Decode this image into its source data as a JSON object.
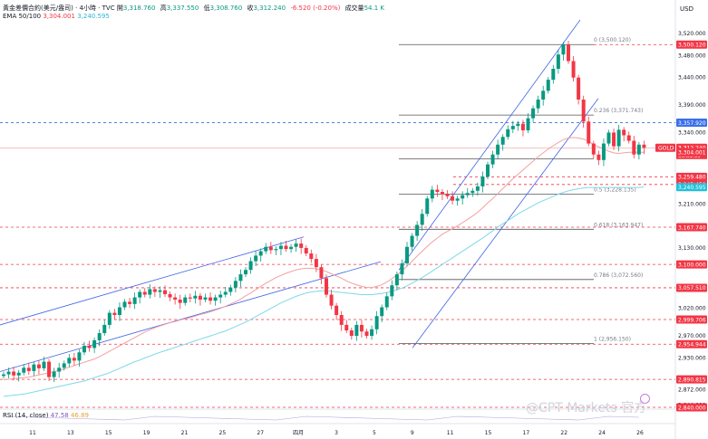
{
  "header": {
    "symbol": "黃金差價合約(美元/盎司) · 4小時 · TVC",
    "open_label": "開",
    "open": "3,318.760",
    "high_label": "高",
    "high": "3,337.550",
    "low_label": "低",
    "low": "3,308.760",
    "close_label": "收",
    "close": "3,312.240",
    "change": "-6.520 (-0.20%)",
    "volume_label": "成交量",
    "volume": "54.1 K",
    "ema_label": "EMA 50/100",
    "ema50": "3,304.001",
    "ema100": "3,240.595",
    "rsi_label": "RSI (14, close)",
    "rsi1": "47.58",
    "rsi2": "46.89"
  },
  "watermark": "@CPT Markets 官方",
  "colors": {
    "up": "#089981",
    "down": "#f23645",
    "ema50": "#f4a0a0",
    "ema100": "#7fd8ea",
    "channel": "#3f63e8",
    "fib": "#555555",
    "level": "#f23645",
    "blue_level": "#3a6fe8"
  },
  "chart_data": {
    "type": "candlestick",
    "currency": "USD",
    "price_axis": {
      "ticks": [
        3520,
        3480,
        3440,
        3390,
        3340,
        3300,
        3210,
        3130,
        3100,
        3060,
        3020,
        2970,
        2930,
        2872,
        2844
      ],
      "tick_labels": [
        "3,520.000",
        "3,480.000",
        "3,440.000",
        "3,390.000",
        "3,340.000",
        "3,300.000",
        "3,210.000",
        "3,130.000",
        "3,100.000",
        "3,060.000",
        "3,020.000",
        "2,970.000",
        "2,930.000",
        "2,872.000",
        "2,844.000"
      ],
      "range": [
        2840,
        3540
      ]
    },
    "x_labels": [
      "11",
      "13",
      "15",
      "19",
      "21",
      "25",
      "27",
      "四月",
      "3",
      "5",
      "9",
      "11",
      "15",
      "17",
      "22",
      "24",
      "26"
    ],
    "levels": [
      {
        "value": 3500.12,
        "label": "3,500.120",
        "kind": "red"
      },
      {
        "value": 3357.92,
        "label": "3,357.920",
        "kind": "blue"
      },
      {
        "value": 3312.24,
        "label": "3,312.240",
        "kind": "current",
        "timer": "03:03:55",
        "ticker": "GOLD"
      },
      {
        "value": 3304.001,
        "label": "3,304.001",
        "kind": "ema50"
      },
      {
        "value": 3259.48,
        "label": "3,259.480",
        "kind": "red"
      },
      {
        "value": 3245.45,
        "label": "3,245.450",
        "kind": "red"
      },
      {
        "value": 3240.595,
        "label": "3,240.595",
        "kind": "ema100"
      },
      {
        "value": 3167.74,
        "label": "3,167.740",
        "kind": "red"
      },
      {
        "value": 3100.0,
        "label": "3,100.000",
        "kind": "red"
      },
      {
        "value": 3057.51,
        "label": "3,057.510",
        "kind": "red"
      },
      {
        "value": 2999.706,
        "label": "2,999.706",
        "kind": "red"
      },
      {
        "value": 2954.944,
        "label": "2,954.944",
        "kind": "red"
      },
      {
        "value": 2890.815,
        "label": "2,890.815",
        "kind": "red"
      },
      {
        "value": 2840.0,
        "label": "2,840.000",
        "kind": "red"
      }
    ],
    "fib": [
      {
        "ratio": "0",
        "value": 3500.12,
        "label": "0 (3,500.120)"
      },
      {
        "ratio": "0.236",
        "value": 3371.743,
        "label": "0.236 (3,371.743)"
      },
      {
        "ratio": "0.382",
        "value": 3292.334,
        "label": ""
      },
      {
        "ratio": "0.5",
        "value": 3228.135,
        "label": "0.5 (3,228.135)"
      },
      {
        "ratio": "0.618",
        "value": 3163.947,
        "label": "0.618 (3,163.947)"
      },
      {
        "ratio": "0.786",
        "value": 3072.56,
        "label": "0.786 (3,072.560)"
      },
      {
        "ratio": "1",
        "value": 2956.15,
        "label": "1 (2,956.150)"
      }
    ],
    "closes": [
      2900,
      2905,
      2898,
      2903,
      2912,
      2906,
      2918,
      2911,
      2923,
      2895,
      2905,
      2912,
      2920,
      2930,
      2925,
      2940,
      2952,
      2948,
      2962,
      2975,
      2990,
      3012,
      3008,
      3022,
      3032,
      3028,
      3040,
      3050,
      3045,
      3055,
      3050,
      3053,
      3046,
      3040,
      3036,
      3030,
      3040,
      3038,
      3043,
      3036,
      3040,
      3034,
      3040,
      3045,
      3050,
      3058,
      3070,
      3082,
      3090,
      3106,
      3116,
      3124,
      3132,
      3126,
      3128,
      3134,
      3128,
      3132,
      3138,
      3130,
      3120,
      3110,
      3095,
      3075,
      3045,
      3025,
      3008,
      2990,
      2980,
      2970,
      2990,
      2978,
      2970,
      2982,
      3006,
      3022,
      3042,
      3062,
      3082,
      3102,
      3132,
      3152,
      3172,
      3192,
      3220,
      3236,
      3232,
      3228,
      3224,
      3216,
      3220,
      3226,
      3230,
      3234,
      3242,
      3260,
      3282,
      3300,
      3318,
      3332,
      3346,
      3352,
      3356,
      3344,
      3366,
      3384,
      3400,
      3416,
      3436,
      3456,
      3482,
      3500,
      3470,
      3440,
      3400,
      3360,
      3320,
      3300,
      3290,
      3320,
      3340,
      3315,
      3345,
      3335,
      3325,
      3300,
      3318,
      3312
    ],
    "ema50": [
      2890,
      2891,
      2892,
      2893,
      2894,
      2895,
      2897,
      2899,
      2901,
      2903,
      2905,
      2907,
      2910,
      2913,
      2916,
      2919,
      2922,
      2925,
      2928,
      2932,
      2937,
      2942,
      2947,
      2952,
      2957,
      2962,
      2967,
      2972,
      2977,
      2981,
      2985,
      2988,
      2991,
      2994,
      2996,
      2999,
      3001,
      3003,
      3006,
      3009,
      3011,
      3014,
      3017,
      3020,
      3024,
      3028,
      3032,
      3037,
      3043,
      3048,
      3054,
      3060,
      3066,
      3071,
      3076,
      3080,
      3084,
      3087,
      3090,
      3092,
      3093,
      3093,
      3092,
      3090,
      3087,
      3083,
      3079,
      3075,
      3070,
      3066,
      3063,
      3060,
      3058,
      3058,
      3060,
      3063,
      3068,
      3074,
      3081,
      3088,
      3097,
      3106,
      3115,
      3124,
      3133,
      3141,
      3148,
      3155,
      3160,
      3165,
      3170,
      3176,
      3182,
      3188,
      3195,
      3203,
      3212,
      3220,
      3229,
      3238,
      3247,
      3256,
      3264,
      3272,
      3280,
      3288,
      3296,
      3303,
      3310,
      3316,
      3322,
      3327,
      3330,
      3331,
      3330,
      3328,
      3324,
      3318,
      3314,
      3310,
      3306,
      3303,
      3302,
      3303,
      3304,
      3304,
      3304,
      3304
    ],
    "ema100": [
      2860,
      2861,
      2862,
      2863,
      2864,
      2866,
      2868,
      2870,
      2872,
      2874,
      2876,
      2878,
      2880,
      2882,
      2884,
      2886,
      2888,
      2891,
      2894,
      2897,
      2900,
      2903,
      2907,
      2911,
      2915,
      2919,
      2923,
      2926,
      2930,
      2933,
      2937,
      2940,
      2943,
      2946,
      2949,
      2952,
      2955,
      2958,
      2961,
      2964,
      2967,
      2970,
      2973,
      2976,
      2979,
      2983,
      2987,
      2991,
      2995,
      3000,
      3005,
      3010,
      3015,
      3020,
      3025,
      3030,
      3034,
      3038,
      3042,
      3045,
      3048,
      3050,
      3051,
      3052,
      3052,
      3051,
      3050,
      3049,
      3048,
      3047,
      3046,
      3045,
      3045,
      3045,
      3046,
      3047,
      3049,
      3051,
      3054,
      3057,
      3061,
      3066,
      3071,
      3076,
      3082,
      3088,
      3094,
      3100,
      3106,
      3112,
      3118,
      3124,
      3130,
      3136,
      3142,
      3148,
      3155,
      3161,
      3168,
      3174,
      3180,
      3186,
      3192,
      3197,
      3202,
      3207,
      3212,
      3216,
      3220,
      3224,
      3228,
      3231,
      3234,
      3236,
      3238,
      3239,
      3240,
      3240,
      3240,
      3240,
      3240,
      3240,
      3240,
      3240,
      3240,
      3240,
      3240,
      3241
    ]
  }
}
